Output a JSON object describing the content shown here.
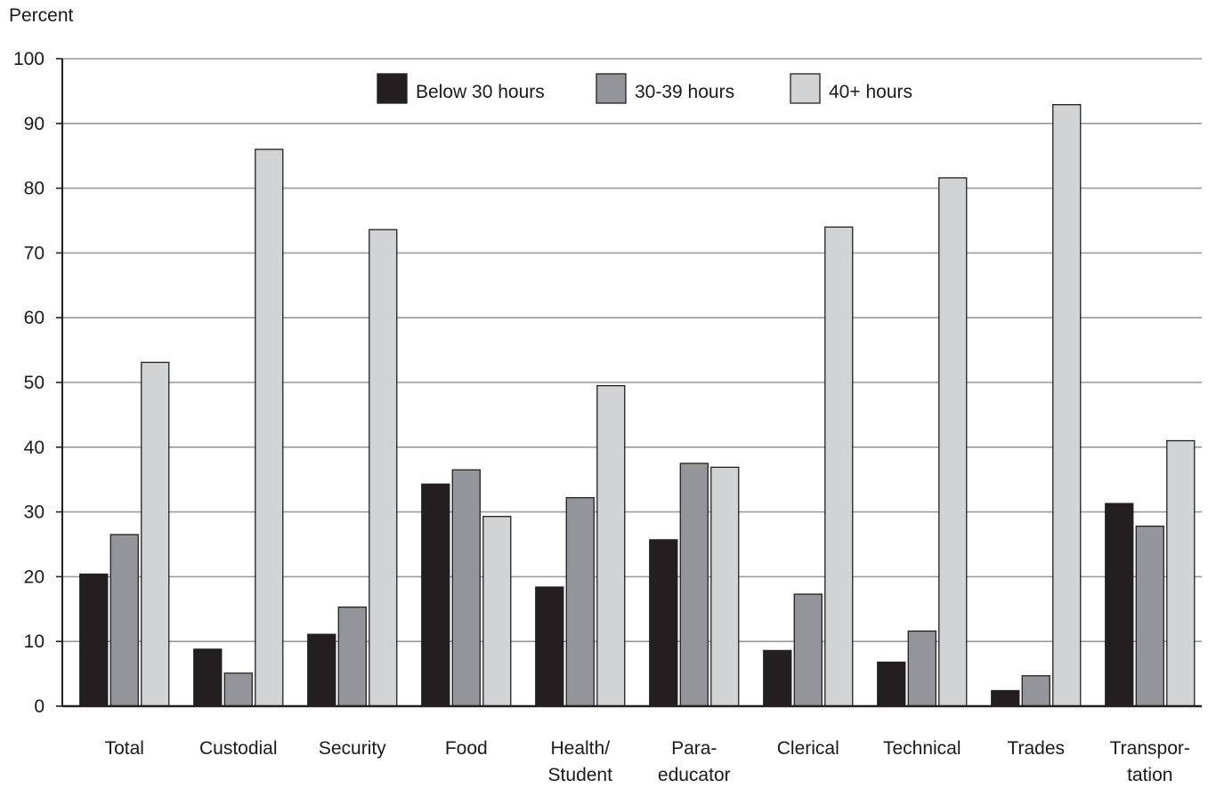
{
  "chart_data": {
    "type": "bar",
    "ylabel": "Percent",
    "ylim": [
      0,
      100
    ],
    "yticks": [
      0,
      10,
      20,
      30,
      40,
      50,
      60,
      70,
      80,
      90,
      100
    ],
    "grid": true,
    "legend_position": "top-center",
    "categories": [
      [
        "Total"
      ],
      [
        "Custodial"
      ],
      [
        "Security"
      ],
      [
        "Food"
      ],
      [
        "Health/",
        "Student"
      ],
      [
        "Para-",
        "educator"
      ],
      [
        "Clerical"
      ],
      [
        "Technical"
      ],
      [
        "Trades"
      ],
      [
        "Transpor-",
        "tation"
      ]
    ],
    "series": [
      {
        "name": "Below 30 hours",
        "color": "#231f20",
        "values": [
          20.4,
          8.8,
          11.1,
          34.3,
          18.4,
          25.7,
          8.6,
          6.8,
          2.4,
          31.3
        ]
      },
      {
        "name": "30-39 hours",
        "color": "#939598",
        "values": [
          26.5,
          5.1,
          15.3,
          36.5,
          32.2,
          37.5,
          17.3,
          11.6,
          4.7,
          27.8
        ]
      },
      {
        "name": "40+ hours",
        "color": "#d1d3d4",
        "values": [
          53.1,
          86.0,
          73.6,
          29.3,
          49.5,
          36.9,
          74.0,
          81.6,
          92.9,
          41.0
        ]
      }
    ]
  }
}
